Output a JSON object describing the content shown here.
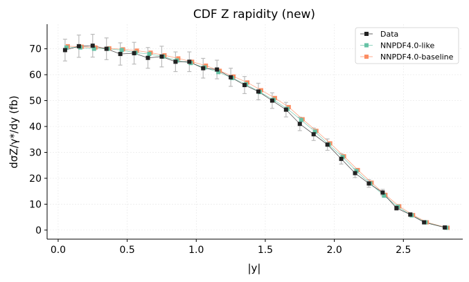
{
  "chart_data": {
    "type": "scatter",
    "title": "CDF Z rapidity (new)",
    "xlabel": "|y|",
    "ylabel": "dσZ/γ*/dy (fb)",
    "xlim": [
      -0.08,
      2.93
    ],
    "ylim": [
      -3.5,
      79.5
    ],
    "xticks": [
      "0.0",
      "0.5",
      "1.0",
      "1.5",
      "2.0",
      "2.5"
    ],
    "yticks": [
      "0",
      "10",
      "20",
      "30",
      "40",
      "50",
      "60",
      "70"
    ],
    "grid": true,
    "legend_position": "top-right",
    "x": [
      0.05,
      0.15,
      0.25,
      0.35,
      0.45,
      0.55,
      0.65,
      0.75,
      0.85,
      0.95,
      1.05,
      1.15,
      1.25,
      1.35,
      1.45,
      1.55,
      1.65,
      1.75,
      1.85,
      1.95,
      2.05,
      2.15,
      2.25,
      2.35,
      2.45,
      2.55,
      2.65,
      2.8
    ],
    "series": [
      {
        "name": "Data",
        "color": "#222222",
        "marker": "square",
        "values": [
          69.5,
          71.0,
          71.2,
          70.0,
          68.0,
          68.3,
          66.5,
          67.0,
          65.0,
          65.0,
          62.5,
          62.0,
          59.0,
          56.0,
          53.5,
          50.0,
          46.5,
          41.0,
          37.0,
          33.0,
          27.5,
          22.0,
          18.0,
          14.5,
          8.5,
          6.0,
          3.0,
          1.0
        ],
        "errors": [
          4.2,
          4.3,
          4.4,
          4.2,
          4.3,
          4.2,
          4.0,
          4.0,
          3.8,
          3.8,
          3.8,
          3.6,
          3.5,
          3.3,
          3.2,
          3.0,
          2.8,
          2.6,
          2.4,
          2.2,
          2.0,
          1.7,
          1.5,
          1.2,
          0.9,
          0.7,
          0.5,
          0.3
        ]
      },
      {
        "name": "NNPDF4.0-like",
        "color": "#66c2a5",
        "marker": "square",
        "values": [
          70.5,
          70.5,
          70.0,
          70.0,
          69.5,
          68.5,
          68.0,
          67.0,
          65.5,
          64.5,
          62.8,
          61.0,
          58.7,
          56.3,
          53.3,
          50.3,
          46.8,
          42.5,
          38.0,
          33.0,
          28.2,
          22.8,
          18.0,
          13.3,
          9.0,
          5.7,
          3.0,
          0.9
        ]
      },
      {
        "name": "NNPDF4.0-baseline",
        "color": "#fc8d62",
        "marker": "square",
        "values": [
          71.0,
          70.8,
          70.5,
          70.2,
          69.8,
          69.3,
          68.5,
          67.5,
          66.3,
          65.0,
          63.5,
          61.5,
          59.3,
          57.0,
          54.0,
          51.0,
          47.5,
          42.8,
          38.3,
          33.5,
          28.5,
          23.2,
          18.3,
          13.6,
          9.2,
          5.8,
          3.0,
          0.9
        ]
      }
    ]
  }
}
